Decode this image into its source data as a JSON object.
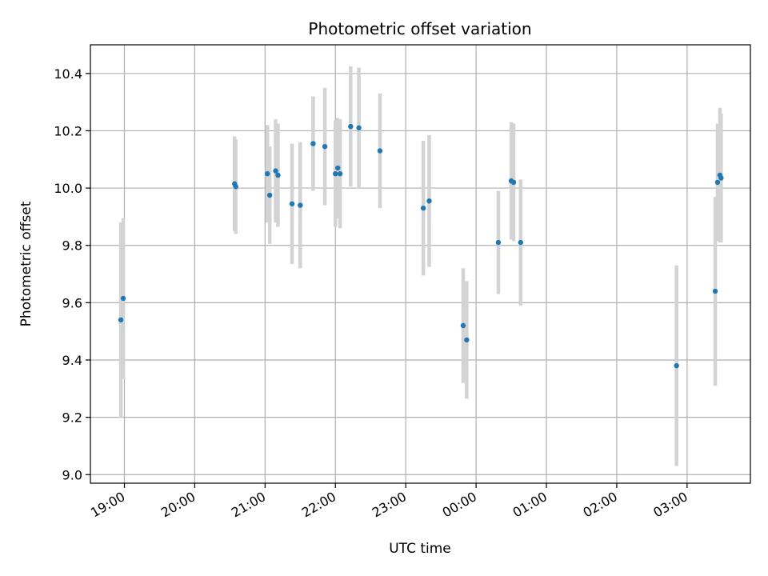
{
  "chart_data": {
    "type": "scatter",
    "title": "Photometric offset variation",
    "xlabel": "UTC time",
    "ylabel": "Photometric offset",
    "x_tick_labels": [
      "19:00",
      "20:00",
      "21:00",
      "22:00",
      "23:00",
      "00:00",
      "01:00",
      "02:00",
      "03:00"
    ],
    "y_tick_labels": [
      "9.0",
      "9.2",
      "9.4",
      "9.6",
      "9.8",
      "10.0",
      "10.2",
      "10.4"
    ],
    "ylim": [
      8.97,
      10.5
    ],
    "xlim": [
      "18:31",
      "03:54"
    ],
    "grid": true,
    "colors": {
      "point": "#1f77b4",
      "errorbar": "#d3d3d3",
      "grid": "#b0b0b0"
    },
    "points": [
      {
        "x": "18:57",
        "y": 9.54,
        "yerr": 0.34
      },
      {
        "x": "18:59",
        "y": 9.615,
        "yerr": 0.28
      },
      {
        "x": "20:34",
        "y": 10.015,
        "yerr": 0.165
      },
      {
        "x": "20:35",
        "y": 10.005,
        "yerr": 0.165
      },
      {
        "x": "21:02",
        "y": 10.05,
        "yerr": 0.17
      },
      {
        "x": "21:04",
        "y": 9.975,
        "yerr": 0.17
      },
      {
        "x": "21:09",
        "y": 10.06,
        "yerr": 0.18
      },
      {
        "x": "21:11",
        "y": 10.045,
        "yerr": 0.18
      },
      {
        "x": "21:23",
        "y": 9.945,
        "yerr": 0.21
      },
      {
        "x": "21:30",
        "y": 9.94,
        "yerr": 0.22
      },
      {
        "x": "21:41",
        "y": 10.155,
        "yerr": 0.165
      },
      {
        "x": "21:51",
        "y": 10.145,
        "yerr": 0.205
      },
      {
        "x": "22:00",
        "y": 10.05,
        "yerr": 0.185
      },
      {
        "x": "22:02",
        "y": 10.07,
        "yerr": 0.175
      },
      {
        "x": "22:04",
        "y": 10.05,
        "yerr": 0.19
      },
      {
        "x": "22:13",
        "y": 10.215,
        "yerr": 0.21
      },
      {
        "x": "22:20",
        "y": 10.21,
        "yerr": 0.21
      },
      {
        "x": "22:38",
        "y": 10.13,
        "yerr": 0.2
      },
      {
        "x": "23:15",
        "y": 9.93,
        "yerr": 0.235
      },
      {
        "x": "23:20",
        "y": 9.955,
        "yerr": 0.23
      },
      {
        "x": "23:49",
        "y": 9.52,
        "yerr": 0.2
      },
      {
        "x": "23:52",
        "y": 9.47,
        "yerr": 0.205
      },
      {
        "x": "00:19",
        "y": 9.81,
        "yerr": 0.18
      },
      {
        "x": "00:30",
        "y": 10.025,
        "yerr": 0.205
      },
      {
        "x": "00:32",
        "y": 10.02,
        "yerr": 0.205
      },
      {
        "x": "00:38",
        "y": 9.81,
        "yerr": 0.22
      },
      {
        "x": "02:51",
        "y": 9.38,
        "yerr": 0.35
      },
      {
        "x": "03:24",
        "y": 9.64,
        "yerr": 0.33
      },
      {
        "x": "03:26",
        "y": 10.02,
        "yerr": 0.205
      },
      {
        "x": "03:28",
        "y": 10.045,
        "yerr": 0.235
      },
      {
        "x": "03:29",
        "y": 10.035,
        "yerr": 0.225
      }
    ]
  }
}
